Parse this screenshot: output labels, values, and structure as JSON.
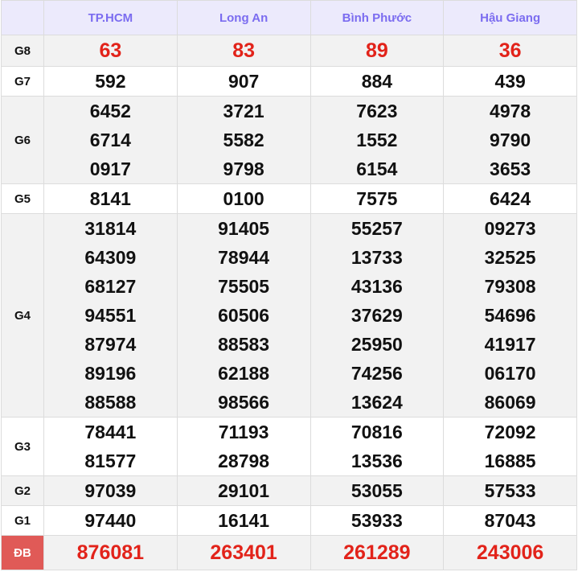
{
  "headers": [
    "",
    "TP.HCM",
    "Long An",
    "Bình Phước",
    "Hậu Giang"
  ],
  "rows": [
    {
      "label": "G8",
      "cells": [
        [
          "63"
        ],
        [
          "83"
        ],
        [
          "89"
        ],
        [
          "36"
        ]
      ],
      "red": true
    },
    {
      "label": "G7",
      "cells": [
        [
          "592"
        ],
        [
          "907"
        ],
        [
          "884"
        ],
        [
          "439"
        ]
      ]
    },
    {
      "label": "G6",
      "cells": [
        [
          "6452",
          "6714",
          "0917"
        ],
        [
          "3721",
          "5582",
          "9798"
        ],
        [
          "7623",
          "1552",
          "6154"
        ],
        [
          "4978",
          "9790",
          "3653"
        ]
      ]
    },
    {
      "label": "G5",
      "cells": [
        [
          "8141"
        ],
        [
          "0100"
        ],
        [
          "7575"
        ],
        [
          "6424"
        ]
      ]
    },
    {
      "label": "G4",
      "cells": [
        [
          "31814",
          "64309",
          "68127",
          "94551",
          "87974",
          "89196",
          "88588"
        ],
        [
          "91405",
          "78944",
          "75505",
          "60506",
          "88583",
          "62188",
          "98566"
        ],
        [
          "55257",
          "13733",
          "43136",
          "37629",
          "25950",
          "74256",
          "13624"
        ],
        [
          "09273",
          "32525",
          "79308",
          "54696",
          "41917",
          "06170",
          "86069"
        ]
      ]
    },
    {
      "label": "G3",
      "cells": [
        [
          "78441",
          "81577"
        ],
        [
          "71193",
          "28798"
        ],
        [
          "70816",
          "13536"
        ],
        [
          "72092",
          "16885"
        ]
      ]
    },
    {
      "label": "G2",
      "cells": [
        [
          "97039"
        ],
        [
          "29101"
        ],
        [
          "53055"
        ],
        [
          "57533"
        ]
      ]
    },
    {
      "label": "G1",
      "cells": [
        [
          "97440"
        ],
        [
          "16141"
        ],
        [
          "53933"
        ],
        [
          "87043"
        ]
      ]
    },
    {
      "label": "ĐB",
      "cells": [
        [
          "876081"
        ],
        [
          "263401"
        ],
        [
          "261289"
        ],
        [
          "243006"
        ]
      ],
      "red": true
    }
  ],
  "colors": {
    "header_text": "#7b6cf0",
    "header_bg": "#eceafc",
    "prize_red": "#e2231a",
    "db_label_bg": "#e05a57"
  }
}
